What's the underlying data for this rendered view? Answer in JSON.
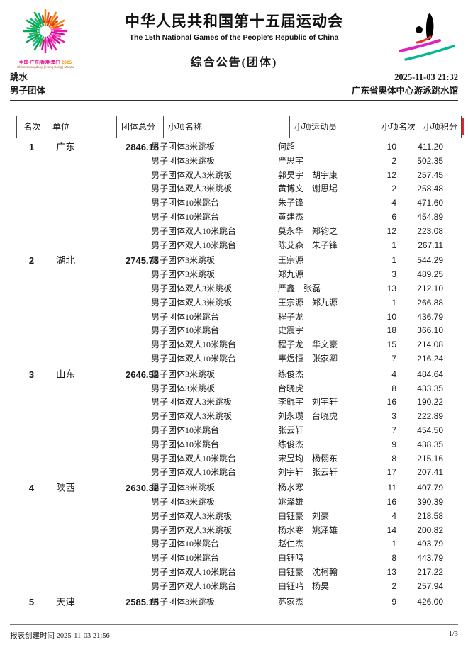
{
  "header": {
    "title_cn": "中华人民共和国第十五届运动会",
    "title_en": "The 15th National Games of the People's Republic of China",
    "bulletin": "综合公告(团体)",
    "logo_caption_cn": "中国·广东|香港|澳门",
    "logo_caption_year": "2025",
    "logo_caption_en": "China·Guangdong | Hong Kong | Macau",
    "sport": "跳水",
    "datetime": "2025-11-03 21:32",
    "event": "男子团体",
    "venue": "广东省奥体中心游泳跳水馆",
    "accent_colors": {
      "magenta": "#e0148c",
      "green": "#00a65a",
      "orange": "#f04e12",
      "teal": "#00b890",
      "red_mark": "#e8262a"
    }
  },
  "table": {
    "columns": [
      "名次",
      "单位",
      "团体总分",
      "小项名称",
      "小项运动员",
      "小项名次",
      "小项积分"
    ],
    "groups": [
      {
        "rank": "1",
        "unit": "广东",
        "total": "2846.16",
        "rows": [
          {
            "event": "男子团体3米跳板",
            "athletes": "何超",
            "erank": "10",
            "points": "411.20"
          },
          {
            "event": "男子团体3米跳板",
            "athletes": "严思宇",
            "erank": "2",
            "points": "502.35"
          },
          {
            "event": "男子团体双人3米跳板",
            "athletes": "郭昊宇　胡宇康",
            "erank": "12",
            "points": "257.45"
          },
          {
            "event": "男子团体双人3米跳板",
            "athletes": "黄博文　谢思埸",
            "erank": "2",
            "points": "258.48"
          },
          {
            "event": "男子团体10米跳台",
            "athletes": "朱子锋",
            "erank": "4",
            "points": "471.60"
          },
          {
            "event": "男子团体10米跳台",
            "athletes": "黄建杰",
            "erank": "6",
            "points": "454.89"
          },
          {
            "event": "男子团体双人10米跳台",
            "athletes": "莫永华　郑钧之",
            "erank": "12",
            "points": "223.08"
          },
          {
            "event": "男子团体双人10米跳台",
            "athletes": "陈艾森　朱子锋",
            "erank": "1",
            "points": "267.11"
          }
        ]
      },
      {
        "rank": "2",
        "unit": "湖北",
        "total": "2745.73",
        "rows": [
          {
            "event": "男子团体3米跳板",
            "athletes": "王宗源",
            "erank": "1",
            "points": "544.29"
          },
          {
            "event": "男子团体3米跳板",
            "athletes": "郑九源",
            "erank": "3",
            "points": "489.25"
          },
          {
            "event": "男子团体双人3米跳板",
            "athletes": "严鑫　张磊",
            "erank": "13",
            "points": "212.10"
          },
          {
            "event": "男子团体双人3米跳板",
            "athletes": "王宗源　郑九源",
            "erank": "1",
            "points": "266.88"
          },
          {
            "event": "男子团体10米跳台",
            "athletes": "程子龙",
            "erank": "10",
            "points": "436.79"
          },
          {
            "event": "男子团体10米跳台",
            "athletes": "史震宇",
            "erank": "18",
            "points": "366.10"
          },
          {
            "event": "男子团体双人10米跳台",
            "athletes": "程子龙　华文豪",
            "erank": "15",
            "points": "214.08"
          },
          {
            "event": "男子团体双人10米跳台",
            "athletes": "辜煜恒　张家卿",
            "erank": "7",
            "points": "216.24"
          }
        ]
      },
      {
        "rank": "3",
        "unit": "山东",
        "total": "2646.52",
        "rows": [
          {
            "event": "男子团体3米跳板",
            "athletes": "练俊杰",
            "erank": "4",
            "points": "484.64"
          },
          {
            "event": "男子团体3米跳板",
            "athletes": "台晓虎",
            "erank": "8",
            "points": "433.35"
          },
          {
            "event": "男子团体双人3米跳板",
            "athletes": "李鲲宇　刘宇轩",
            "erank": "16",
            "points": "190.22"
          },
          {
            "event": "男子团体双人3米跳板",
            "athletes": "刘永瓒　台晓虎",
            "erank": "3",
            "points": "222.89"
          },
          {
            "event": "男子团体10米跳台",
            "athletes": "张云轩",
            "erank": "7",
            "points": "454.50"
          },
          {
            "event": "男子团体10米跳台",
            "athletes": "练俊杰",
            "erank": "9",
            "points": "438.35"
          },
          {
            "event": "男子团体双人10米跳台",
            "athletes": "宋昱均　杨栩东",
            "erank": "8",
            "points": "215.16"
          },
          {
            "event": "男子团体双人10米跳台",
            "athletes": "刘宇轩　张云轩",
            "erank": "17",
            "points": "207.41"
          }
        ]
      },
      {
        "rank": "4",
        "unit": "陕西",
        "total": "2630.32",
        "rows": [
          {
            "event": "男子团体3米跳板",
            "athletes": "杨水寒",
            "erank": "11",
            "points": "407.79"
          },
          {
            "event": "男子团体3米跳板",
            "athletes": "姚泽雄",
            "erank": "16",
            "points": "390.39"
          },
          {
            "event": "男子团体双人3米跳板",
            "athletes": "白钰豪　刘豪",
            "erank": "4",
            "points": "218.58"
          },
          {
            "event": "男子团体双人3米跳板",
            "athletes": "杨水寒　姚泽雄",
            "erank": "14",
            "points": "200.82"
          },
          {
            "event": "男子团体10米跳台",
            "athletes": "赵仁杰",
            "erank": "1",
            "points": "493.79"
          },
          {
            "event": "男子团体10米跳台",
            "athletes": "白钰鸣",
            "erank": "8",
            "points": "443.79"
          },
          {
            "event": "男子团体双人10米跳台",
            "athletes": "白钰豪　沈柯翰",
            "erank": "13",
            "points": "217.22"
          },
          {
            "event": "男子团体双人10米跳台",
            "athletes": "白钰鸣　杨昊",
            "erank": "2",
            "points": "257.94"
          }
        ]
      },
      {
        "rank": "5",
        "unit": "天津",
        "total": "2585.15",
        "rows": [
          {
            "event": "男子团体3米跳板",
            "athletes": "苏家杰",
            "erank": "9",
            "points": "426.00"
          }
        ]
      }
    ]
  },
  "footer": {
    "created": "报表创建时间 2025-11-03 21:56",
    "page": "1/3"
  }
}
